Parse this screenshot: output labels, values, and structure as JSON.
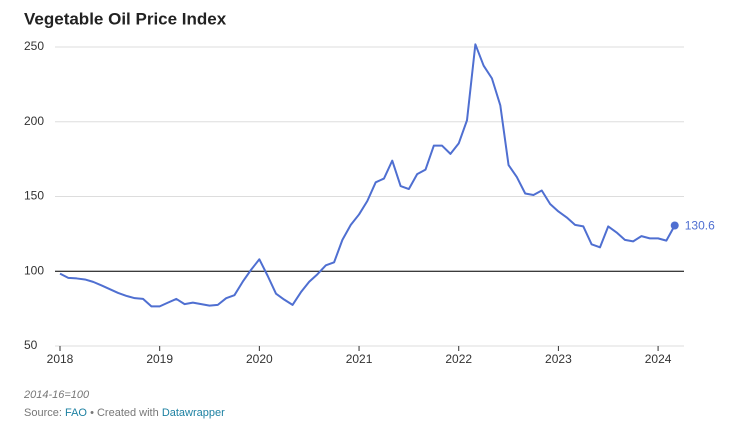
{
  "chart_data": {
    "type": "line",
    "title": "Vegetable Oil Price Index",
    "note": "2014-16=100",
    "source": {
      "label": "Source:",
      "name": "FAO",
      "separator": "•",
      "credit": "Created with",
      "tool": "Datawrapper"
    },
    "x": [
      2018,
      2018.083,
      2018.167,
      2018.25,
      2018.333,
      2018.417,
      2018.5,
      2018.583,
      2018.667,
      2018.75,
      2018.833,
      2018.917,
      2019,
      2019.083,
      2019.167,
      2019.25,
      2019.333,
      2019.417,
      2019.5,
      2019.583,
      2019.667,
      2019.75,
      2019.833,
      2019.917,
      2020,
      2020.083,
      2020.167,
      2020.25,
      2020.333,
      2020.417,
      2020.5,
      2020.583,
      2020.667,
      2020.75,
      2020.833,
      2020.917,
      2021,
      2021.083,
      2021.167,
      2021.25,
      2021.333,
      2021.417,
      2021.5,
      2021.583,
      2021.667,
      2021.75,
      2021.833,
      2021.917,
      2022,
      2022.083,
      2022.167,
      2022.25,
      2022.333,
      2022.417,
      2022.5,
      2022.583,
      2022.667,
      2022.75,
      2022.833,
      2022.917,
      2023,
      2023.083,
      2023.167,
      2023.25,
      2023.333,
      2023.417,
      2023.5,
      2023.583,
      2023.667,
      2023.75,
      2023.833,
      2023.917,
      2024,
      2024.083,
      2024.167
    ],
    "series": [
      {
        "name": "Vegetable Oil Price Index",
        "color": "#4f6fd1",
        "values": [
          98.4,
          95.6,
          95.2,
          94.5,
          92.9,
          90.5,
          88,
          85.5,
          83.5,
          82,
          81.5,
          76.5,
          76.5,
          79,
          81.5,
          78,
          79,
          78,
          77,
          77.5,
          82,
          84,
          93,
          101,
          108,
          97,
          85,
          81,
          77.5,
          86,
          93,
          98,
          104,
          106,
          121,
          131,
          138,
          147,
          159.5,
          162,
          174,
          157,
          155,
          165,
          168,
          184,
          184,
          178.5,
          185.5,
          201,
          251.8,
          237.5,
          229,
          211,
          171,
          163,
          152,
          151,
          154,
          145,
          140,
          136,
          131,
          130,
          118,
          116,
          130,
          126,
          121,
          120,
          123.5,
          122,
          122,
          120.5,
          130.6
        ]
      }
    ],
    "xlim": [
      2018,
      2024.26
    ],
    "xticks": [
      2018,
      2019,
      2020,
      2021,
      2022,
      2023,
      2024
    ],
    "ylim": [
      50,
      250
    ],
    "yticks": [
      50,
      100,
      150,
      200,
      250
    ],
    "reference_line": 100,
    "grid": true
  }
}
